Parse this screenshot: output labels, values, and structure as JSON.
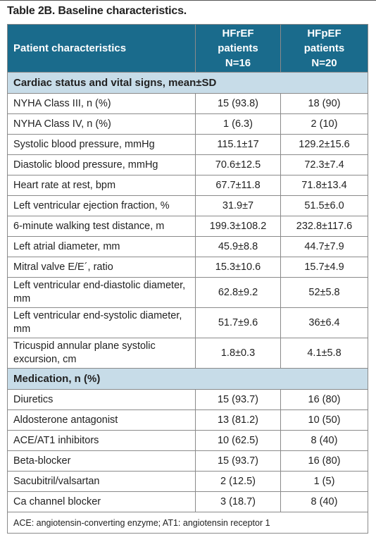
{
  "title": "Table 2B. Baseline characteristics.",
  "table": {
    "header": {
      "characteristic": "Patient characteristics",
      "groups": [
        {
          "name": "HFrEF patients",
          "n": "N=16"
        },
        {
          "name": "HFpEF patients",
          "n": "N=20"
        }
      ]
    },
    "sections": [
      {
        "title": "Cardiac status and vital signs, mean±SD",
        "rows": [
          [
            "NYHA Class III, n (%)",
            "15 (93.8)",
            "18 (90)"
          ],
          [
            "NYHA Class IV, n (%)",
            "1 (6.3)",
            "2 (10)"
          ],
          [
            "Systolic blood pressure, mmHg",
            "115.1±17",
            "129.2±15.6"
          ],
          [
            "Diastolic blood pressure, mmHg",
            "70.6±12.5",
            "72.3±7.4"
          ],
          [
            "Heart rate at rest, bpm",
            "67.7±11.8",
            "71.8±13.4"
          ],
          [
            "Left ventricular ejection fraction, %",
            "31.9±7",
            "51.5±6.0"
          ],
          [
            "6-minute walking test distance, m",
            "199.3±108.2",
            "232.8±117.6"
          ],
          [
            "Left atrial diameter, mm",
            "45.9±8.8",
            "44.7±7.9"
          ],
          [
            "Mitral valve E/E´, ratio",
            "15.3±10.6",
            "15.7±4.9"
          ],
          [
            "Left ventricular end-diastolic diameter, mm",
            "62.8±9.2",
            "52±5.8"
          ],
          [
            "Left ventricular end-systolic diameter, mm",
            "51.7±9.6",
            "36±6.4"
          ],
          [
            "Tricuspid annular plane systolic excursion, cm",
            "1.8±0.3",
            "4.1±5.8"
          ]
        ]
      },
      {
        "title": "Medication, n (%)",
        "rows": [
          [
            "Diuretics",
            "15 (93.7)",
            "16 (80)"
          ],
          [
            "Aldosterone antagonist",
            "13 (81.2)",
            "10 (50)"
          ],
          [
            "ACE/AT1 inhibitors",
            "10 (62.5)",
            "8 (40)"
          ],
          [
            "Beta-blocker",
            "15 (93.7)",
            "16 (80)"
          ],
          [
            "Sacubitril/valsartan",
            "2 (12.5)",
            "1 (5)"
          ],
          [
            "Ca channel blocker",
            "3 (18.7)",
            "8 (40)"
          ]
        ]
      }
    ],
    "footnote": "ACE: angiotensin-converting enzyme; AT1: angiotensin receptor 1"
  }
}
